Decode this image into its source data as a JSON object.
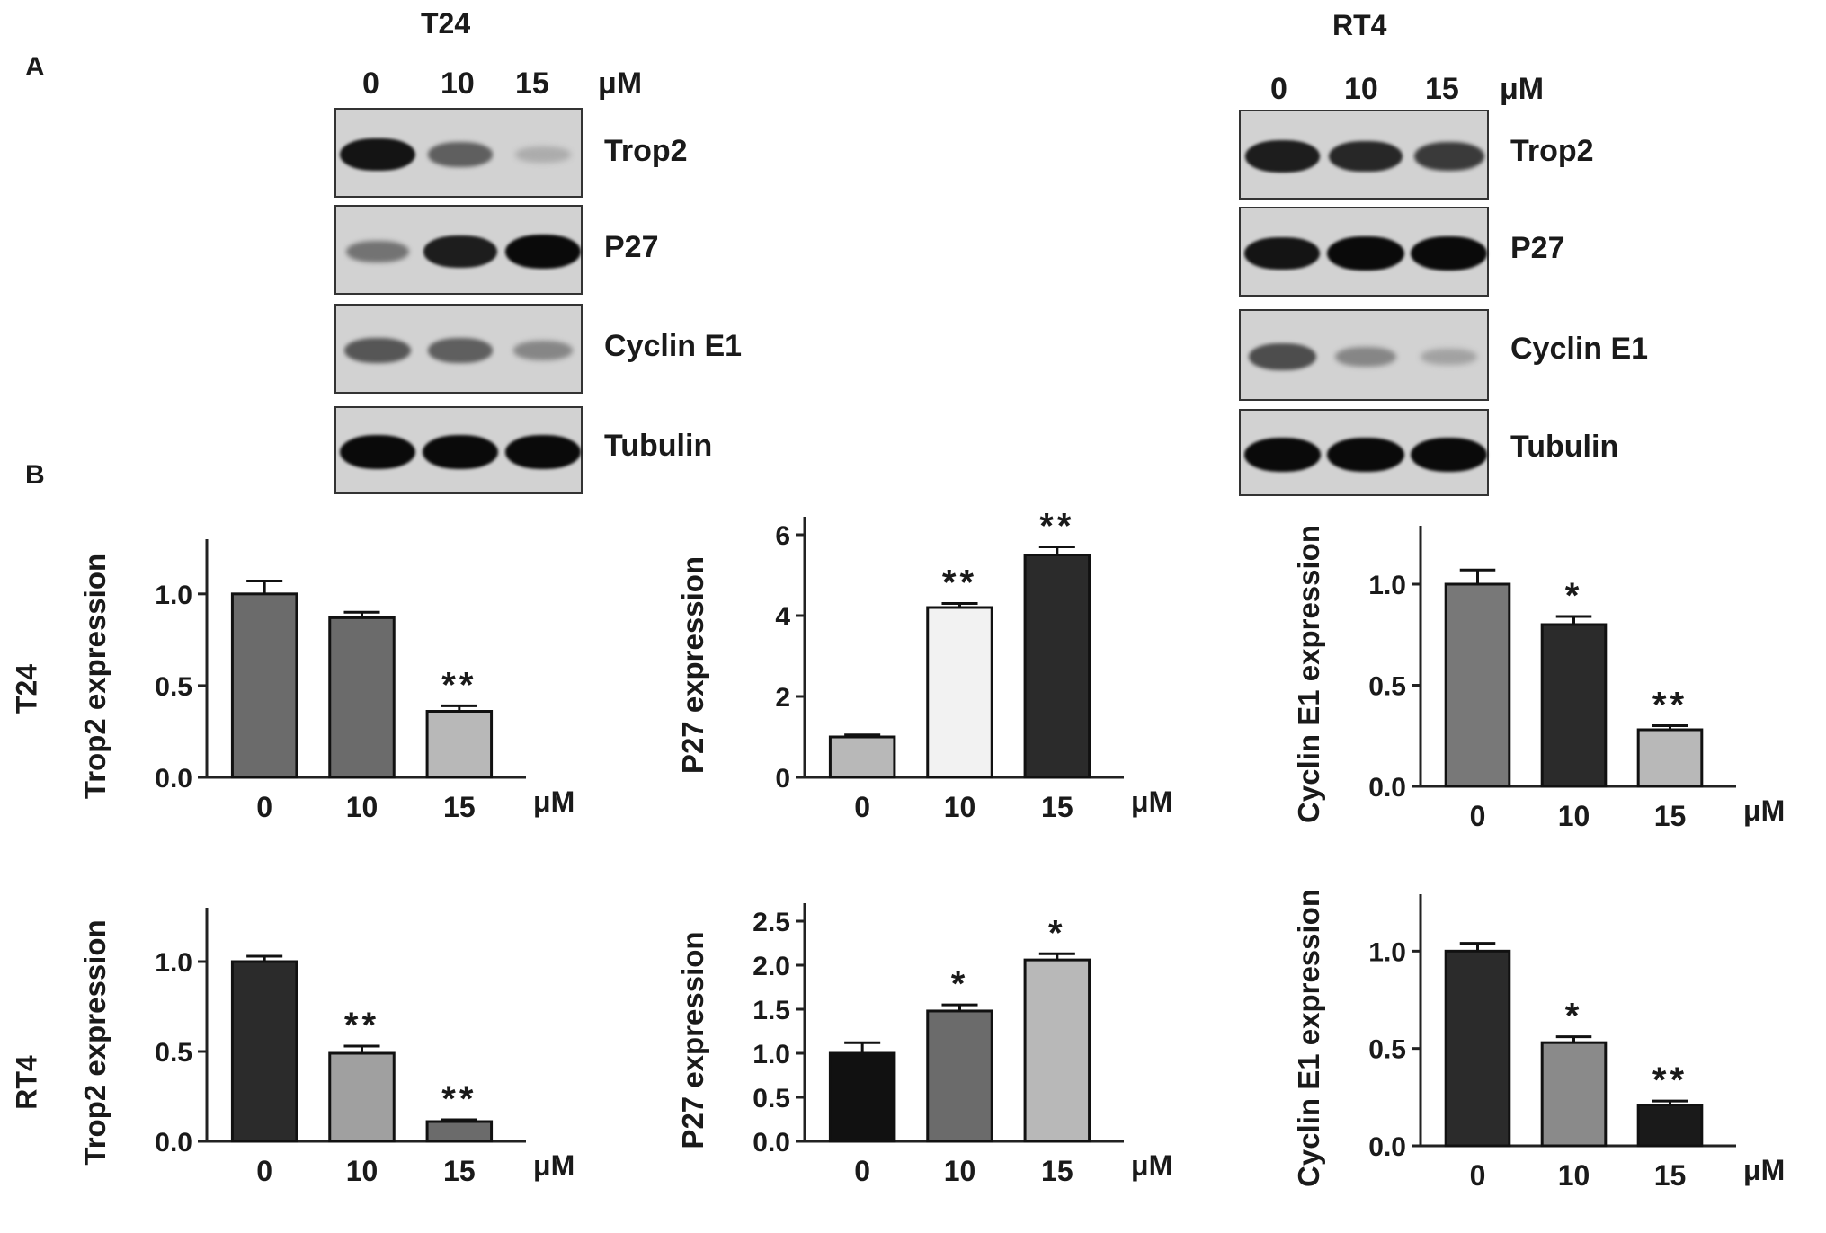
{
  "labels": {
    "panel_a": "A",
    "panel_b": "B",
    "row_t24": "T24",
    "row_rt4": "RT4"
  },
  "blots": [
    {
      "cell_line": "T24",
      "concentrations": [
        "0",
        "10",
        "15"
      ],
      "unit": "μM",
      "proteins": [
        "Trop2",
        "P27",
        "Cyclin E1",
        "Tubulin"
      ],
      "band_intensity": [
        [
          0.95,
          0.55,
          0.15
        ],
        [
          0.45,
          0.9,
          1.0
        ],
        [
          0.6,
          0.55,
          0.35
        ],
        [
          1.0,
          1.0,
          1.0
        ]
      ]
    },
    {
      "cell_line": "RT4",
      "concentrations": [
        "0",
        "10",
        "15"
      ],
      "unit": "μM",
      "proteins": [
        "Trop2",
        "P27",
        "Cyclin E1",
        "Tubulin"
      ],
      "band_intensity": [
        [
          0.9,
          0.85,
          0.75
        ],
        [
          0.95,
          1.0,
          1.0
        ],
        [
          0.65,
          0.35,
          0.2
        ],
        [
          1.0,
          1.0,
          1.0
        ]
      ]
    }
  ],
  "chart_data": [
    {
      "type": "bar",
      "row": "T24",
      "ylabel": "Trop2  expression",
      "xunit": "μM",
      "categories": [
        "0",
        "10",
        "15"
      ],
      "values": [
        1.0,
        0.87,
        0.36
      ],
      "errors": [
        0.07,
        0.03,
        0.03
      ],
      "significance": [
        "",
        "",
        "**"
      ],
      "colors": [
        "#6b6b6b",
        "#6b6b6b",
        "#b8b8b8"
      ],
      "ylim": [
        0,
        1.2
      ],
      "yticks": [
        "0.0",
        "0.5",
        "1.0"
      ]
    },
    {
      "type": "bar",
      "row": "T24",
      "ylabel": "P27  expression",
      "xunit": "μM",
      "categories": [
        "0",
        "10",
        "15"
      ],
      "values": [
        1.0,
        4.2,
        5.5
      ],
      "errors": [
        0.05,
        0.1,
        0.2
      ],
      "significance": [
        "",
        "**",
        "**"
      ],
      "colors": [
        "#b8b8b8",
        "#f2f2f2",
        "#2b2b2b"
      ],
      "ylim": [
        0,
        6
      ],
      "yticks": [
        "0",
        "2",
        "4",
        "6"
      ]
    },
    {
      "type": "bar",
      "row": "T24",
      "ylabel": "Cyclin E1 expression",
      "xunit": "μM",
      "categories": [
        "0",
        "10",
        "15"
      ],
      "values": [
        1.0,
        0.8,
        0.28
      ],
      "errors": [
        0.07,
        0.04,
        0.02
      ],
      "significance": [
        "",
        "*",
        "**"
      ],
      "colors": [
        "#787878",
        "#2b2b2b",
        "#b8b8b8"
      ],
      "ylim": [
        0,
        1.2
      ],
      "yticks": [
        "0.0",
        "0.5",
        "1.0"
      ]
    },
    {
      "type": "bar",
      "row": "RT4",
      "ylabel": "Trop2  expression",
      "xunit": "μM",
      "categories": [
        "0",
        "10",
        "15"
      ],
      "values": [
        1.0,
        0.49,
        0.11
      ],
      "errors": [
        0.03,
        0.04,
        0.01
      ],
      "significance": [
        "",
        "**",
        "**"
      ],
      "colors": [
        "#2b2b2b",
        "#a0a0a0",
        "#6b6b6b"
      ],
      "ylim": [
        0,
        1.2
      ],
      "yticks": [
        "0.0",
        "0.5",
        "1.0"
      ]
    },
    {
      "type": "bar",
      "row": "RT4",
      "ylabel": "P27  expression",
      "xunit": "μM",
      "categories": [
        "0",
        "10",
        "15"
      ],
      "values": [
        1.0,
        1.48,
        2.06
      ],
      "errors": [
        0.12,
        0.07,
        0.07
      ],
      "significance": [
        "",
        "*",
        "*"
      ],
      "colors": [
        "#111111",
        "#6b6b6b",
        "#b8b8b8"
      ],
      "ylim": [
        0,
        2.5
      ],
      "yticks": [
        "0.0",
        "0.5",
        "1.0",
        "1.5",
        "2.0",
        "2.5"
      ]
    },
    {
      "type": "bar",
      "row": "RT4",
      "ylabel": "Cyclin E1 expression",
      "xunit": "μM",
      "categories": [
        "0",
        "10",
        "15"
      ],
      "values": [
        1.0,
        0.53,
        0.21
      ],
      "errors": [
        0.04,
        0.03,
        0.02
      ],
      "significance": [
        "",
        "*",
        "**"
      ],
      "colors": [
        "#2b2b2b",
        "#8a8a8a",
        "#1a1a1a"
      ],
      "ylim": [
        0,
        1.2
      ],
      "yticks": [
        "0.0",
        "0.5",
        "1.0"
      ]
    }
  ]
}
